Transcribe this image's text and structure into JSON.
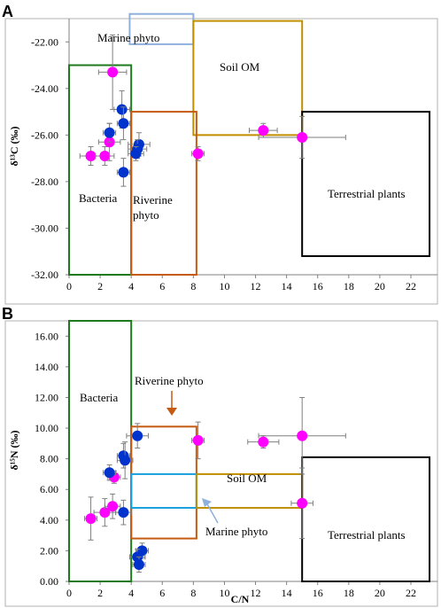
{
  "colors": {
    "magenta": "#ff00ff",
    "blue": "#0033cc",
    "green": "#1f7a1f",
    "brown": "#c55a11",
    "gold": "#c09000",
    "lightblue": "#8fb0dc",
    "cyan": "#1aa0dc",
    "black": "#000000",
    "errorbar": "#7f7f7f"
  },
  "chart_data": [
    {
      "type": "scatter",
      "panel": "A",
      "xlabel": "",
      "ylabel": "δ¹³C (‰)",
      "xlim": [
        0,
        22
      ],
      "ylim": [
        -32,
        -21
      ],
      "x_ticks": [
        0,
        2,
        4,
        6,
        8,
        10,
        12,
        14,
        16,
        18,
        20,
        22
      ],
      "x_tick_labels": [
        "0",
        "2",
        "4",
        "6",
        "8",
        "10",
        "12",
        "14",
        "16",
        "18",
        "20",
        "22"
      ],
      "y_ticks": [
        -32,
        -30,
        -28,
        -26,
        -24,
        -22
      ],
      "y_tick_labels": [
        "-32.00",
        "-30.00",
        "-28.00",
        "-26.00",
        "-24.00",
        "-22.00"
      ],
      "grid": false,
      "regions": [
        {
          "label": "Marine phyto",
          "color": "#8fb0dc",
          "x": [
            3.9,
            8.0
          ],
          "y": [
            -22.1,
            -20.8
          ]
        },
        {
          "label": "Soil OM",
          "color": "#c09000",
          "x": [
            8.0,
            15.0
          ],
          "y": [
            -26.0,
            -21.1
          ]
        },
        {
          "label": "Bacteria",
          "color": "#1f7a1f",
          "x": [
            0,
            4.0
          ],
          "y": [
            -32.0,
            -23.0
          ]
        },
        {
          "label": "Riverine\nphyto",
          "color": "#c55a11",
          "x": [
            4.0,
            8.2
          ],
          "y": [
            -32.0,
            -25.0
          ]
        },
        {
          "label": "Terrestrial plants",
          "color": "#000000",
          "x": [
            15.0,
            23.2
          ],
          "y": [
            -31.2,
            -25.0
          ]
        }
      ],
      "series": [
        {
          "color": "#ff00ff",
          "points": [
            {
              "x": 2.8,
              "y": -23.3,
              "ex": 0.9,
              "ey": 1.6
            },
            {
              "x": 1.4,
              "y": -26.9,
              "ex": 0.7,
              "ey": 0.4
            },
            {
              "x": 2.3,
              "y": -26.9,
              "ex": 0.6,
              "ey": 0.4
            },
            {
              "x": 2.6,
              "y": -26.3,
              "ex": 0.7,
              "ey": 0.8
            },
            {
              "x": 8.3,
              "y": -26.8,
              "ex": 0.4,
              "ey": 0.3
            },
            {
              "x": 12.5,
              "y": -25.8,
              "ex": 0.9,
              "ey": 0.3
            },
            {
              "x": 15.0,
              "y": -26.1,
              "ex": 2.8,
              "ey": 0.9
            }
          ]
        },
        {
          "color": "#0033cc",
          "points": [
            {
              "x": 3.4,
              "y": -24.9,
              "ex": 0.5,
              "ey": 0.8
            },
            {
              "x": 3.5,
              "y": -25.5,
              "ex": 0.4,
              "ey": 0.7
            },
            {
              "x": 2.6,
              "y": -25.9,
              "ex": 0.4,
              "ey": 0.4
            },
            {
              "x": 4.5,
              "y": -26.4,
              "ex": 0.7,
              "ey": 0.5
            },
            {
              "x": 4.4,
              "y": -26.6,
              "ex": 0.6,
              "ey": 0.4
            },
            {
              "x": 4.3,
              "y": -26.8,
              "ex": 0.5,
              "ey": 0.3
            },
            {
              "x": 3.5,
              "y": -27.6,
              "ex": 0.4,
              "ey": 0.6
            }
          ]
        }
      ]
    },
    {
      "type": "scatter",
      "panel": "B",
      "xlabel": "C/N",
      "ylabel": "δ¹⁵N (‰)",
      "xlim": [
        0,
        22
      ],
      "ylim": [
        0,
        17
      ],
      "x_ticks": [
        0,
        2,
        4,
        6,
        8,
        10,
        12,
        14,
        16,
        18,
        20,
        22
      ],
      "x_tick_labels": [
        "0",
        "2",
        "4",
        "6",
        "8",
        "10",
        "12",
        "14",
        "16",
        "18",
        "20",
        "22"
      ],
      "y_ticks": [
        0,
        2,
        4,
        6,
        8,
        10,
        12,
        14,
        16
      ],
      "y_tick_labels": [
        "0.00",
        "2.00",
        "4.00",
        "6.00",
        "8.00",
        "10.00",
        "12.00",
        "14.00",
        "16.00"
      ],
      "grid": false,
      "regions": [
        {
          "label": "Bacteria",
          "color": "#1f7a1f",
          "x": [
            0,
            4.0
          ],
          "y": [
            0,
            17.0
          ]
        },
        {
          "label": "Riverine phyto",
          "color": "#c55a11",
          "x": [
            4.0,
            8.2
          ],
          "y": [
            2.8,
            10.1
          ]
        },
        {
          "label": "Marine phyto",
          "color": "#1aa0dc",
          "x": [
            4.0,
            8.2
          ],
          "y": [
            4.8,
            7.0
          ]
        },
        {
          "label": "Soil OM",
          "color": "#c09000",
          "x": [
            8.2,
            15.0
          ],
          "y": [
            4.8,
            7.0
          ]
        },
        {
          "label": "Terrestrial plants",
          "color": "#000000",
          "x": [
            15.0,
            23.2
          ],
          "y": [
            0,
            8.1
          ]
        }
      ],
      "series": [
        {
          "color": "#ff00ff",
          "points": [
            {
              "x": 1.4,
              "y": 4.1,
              "ex": 0.4,
              "ey": 1.4
            },
            {
              "x": 2.3,
              "y": 4.5,
              "ex": 0.7,
              "ey": 0.9
            },
            {
              "x": 2.8,
              "y": 4.9,
              "ex": 0.5,
              "ey": 0.8
            },
            {
              "x": 2.9,
              "y": 6.8,
              "ex": 0.4,
              "ey": 0.4
            },
            {
              "x": 8.3,
              "y": 9.2,
              "ex": 0.4,
              "ey": 1.2
            },
            {
              "x": 12.5,
              "y": 9.1,
              "ex": 1.0,
              "ey": 0.4
            },
            {
              "x": 15.0,
              "y": 9.5,
              "ex": 2.8,
              "ey": 2.5
            },
            {
              "x": 15.0,
              "y": 5.1,
              "ex": 0.7,
              "ey": 2.3
            }
          ]
        },
        {
          "color": "#0033cc",
          "points": [
            {
              "x": 4.4,
              "y": 9.5,
              "ex": 0.7,
              "ey": 0.8
            },
            {
              "x": 3.5,
              "y": 8.2,
              "ex": 0.4,
              "ey": 0.8
            },
            {
              "x": 3.6,
              "y": 7.9,
              "ex": 0.5,
              "ey": 1.2
            },
            {
              "x": 2.6,
              "y": 7.1,
              "ex": 0.4,
              "ey": 0.5
            },
            {
              "x": 3.5,
              "y": 4.5,
              "ex": 0.5,
              "ey": 0.8
            },
            {
              "x": 4.7,
              "y": 2.0,
              "ex": 0.4,
              "ey": 0.5
            },
            {
              "x": 4.4,
              "y": 1.6,
              "ex": 0.5,
              "ey": 0.5
            },
            {
              "x": 4.5,
              "y": 1.1,
              "ex": 0.4,
              "ey": 0.5
            }
          ]
        }
      ]
    }
  ]
}
